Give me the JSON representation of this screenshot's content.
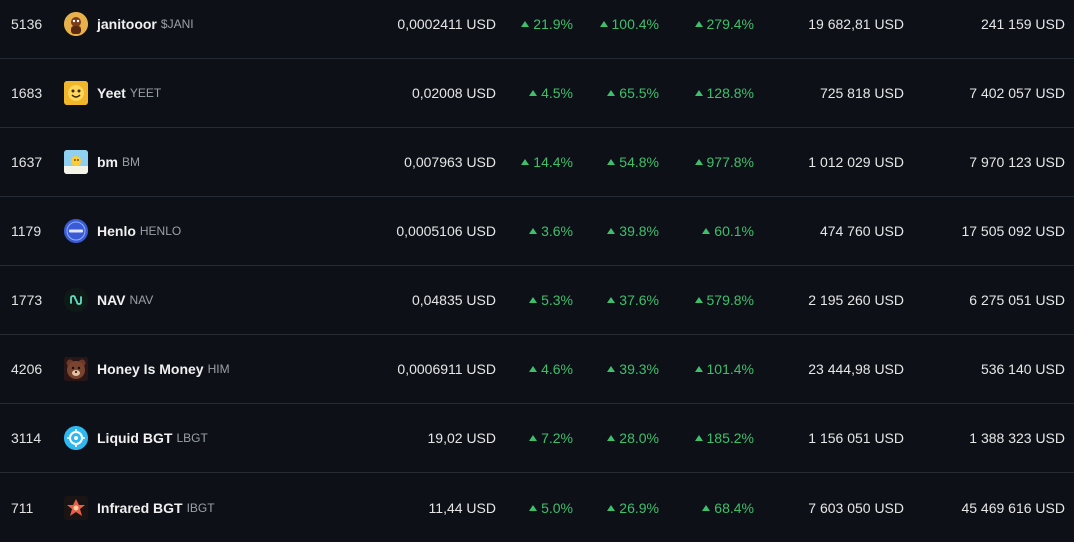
{
  "colors": {
    "background": "#0d1117",
    "positive": "#3fbf6b",
    "row_divider": "#262b33"
  },
  "rows": [
    {
      "rank": "5136",
      "name": "janitooor",
      "symbol": "$JANI",
      "icon": "janitooor-avatar-icon",
      "price": "0,0002411 USD",
      "chg_1h": "21.9%",
      "chg_24h": "100.4%",
      "chg_7d": "279.4%",
      "volume": "19 682,81 USD",
      "market_cap": "241 159 USD"
    },
    {
      "rank": "1683",
      "name": "Yeet",
      "symbol": "YEET",
      "icon": "yeet-face-icon",
      "price": "0,02008 USD",
      "chg_1h": "4.5%",
      "chg_24h": "65.5%",
      "chg_7d": "128.8%",
      "volume": "725 818 USD",
      "market_cap": "7 402 057 USD"
    },
    {
      "rank": "1637",
      "name": "bm",
      "symbol": "BM",
      "icon": "sun-sky-icon",
      "price": "0,007963 USD",
      "chg_1h": "14.4%",
      "chg_24h": "54.8%",
      "chg_7d": "977.8%",
      "volume": "1 012 029 USD",
      "market_cap": "7 970 123 USD"
    },
    {
      "rank": "1179",
      "name": "Henlo",
      "symbol": "HENLO",
      "icon": "henlo-badge-icon",
      "price": "0,0005106 USD",
      "chg_1h": "3.6%",
      "chg_24h": "39.8%",
      "chg_7d": "60.1%",
      "volume": "474 760 USD",
      "market_cap": "17 505 092 USD"
    },
    {
      "rank": "1773",
      "name": "NAV",
      "symbol": "NAV",
      "icon": "nav-wave-icon",
      "price": "0,04835 USD",
      "chg_1h": "5.3%",
      "chg_24h": "37.6%",
      "chg_7d": "579.8%",
      "volume": "2 195 260 USD",
      "market_cap": "6 275 051 USD"
    },
    {
      "rank": "4206",
      "name": "Honey Is Money",
      "symbol": "HIM",
      "icon": "bear-face-icon",
      "price": "0,0006911 USD",
      "chg_1h": "4.6%",
      "chg_24h": "39.3%",
      "chg_7d": "101.4%",
      "volume": "23 444,98 USD",
      "market_cap": "536 140 USD"
    },
    {
      "rank": "3114",
      "name": "Liquid BGT",
      "symbol": "LBGT",
      "icon": "liquid-bgt-icon",
      "price": "19,02 USD",
      "chg_1h": "7.2%",
      "chg_24h": "28.0%",
      "chg_7d": "185.2%",
      "volume": "1 156 051 USD",
      "market_cap": "1 388 323 USD"
    },
    {
      "rank": "711",
      "name": "Infrared BGT",
      "symbol": "IBGT",
      "icon": "infrared-bgt-icon",
      "price": "11,44 USD",
      "chg_1h": "5.0%",
      "chg_24h": "26.9%",
      "chg_7d": "68.4%",
      "volume": "7 603 050 USD",
      "market_cap": "45 469 616 USD"
    }
  ]
}
